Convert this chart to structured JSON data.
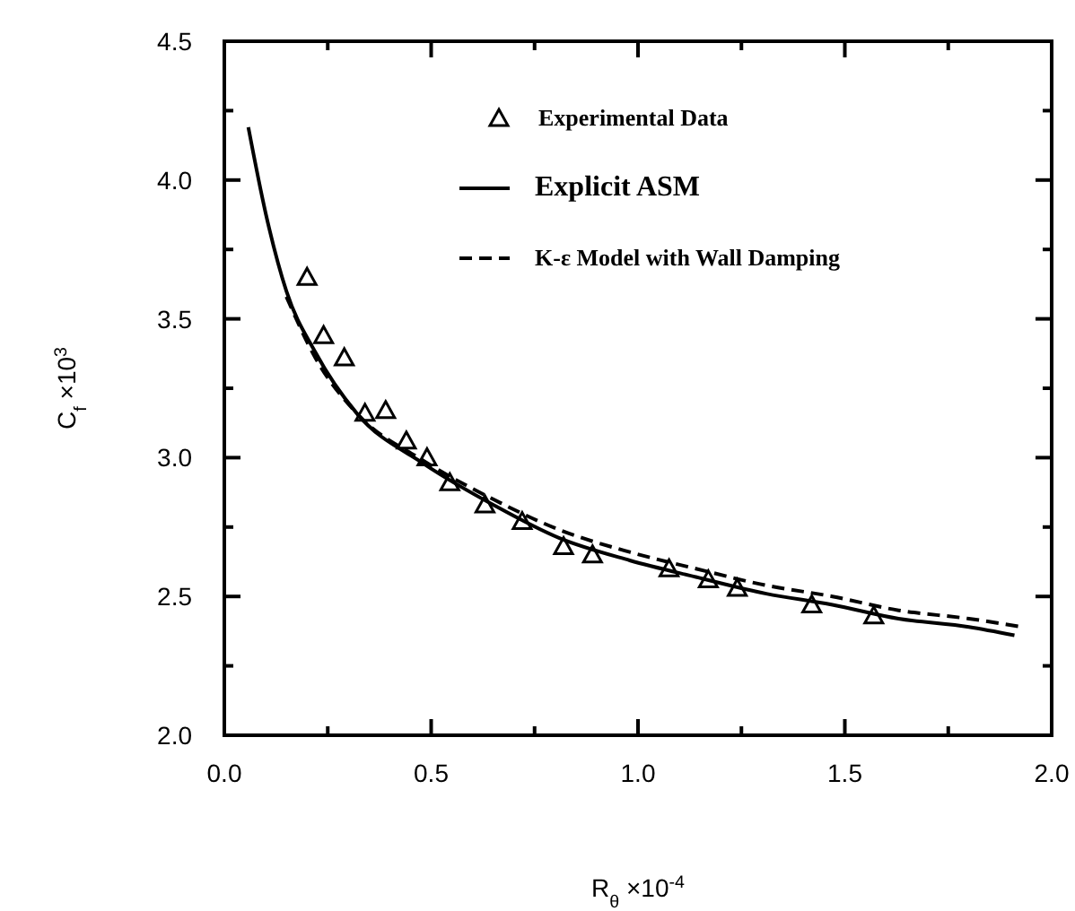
{
  "chart_data": {
    "type": "line",
    "xlabel": "R$_{θ}$  ×10$^{-4}$",
    "ylabel": "C$_{f}$  ×10$^{3}$",
    "xlim": [
      0,
      2
    ],
    "ylim": [
      2,
      4.5
    ],
    "xticks": [
      {
        "value": 0,
        "label": "0.0"
      },
      {
        "value": 0.25,
        "label": null
      },
      {
        "value": 0.5,
        "label": "0.5"
      },
      {
        "value": 0.75,
        "label": null
      },
      {
        "value": 1,
        "label": "1.0"
      },
      {
        "value": 1.25,
        "label": null
      },
      {
        "value": 1.5,
        "label": "1.5"
      },
      {
        "value": 1.75,
        "label": null
      },
      {
        "value": 2,
        "label": "2.0"
      }
    ],
    "yticks": [
      {
        "value": 2,
        "label": "2.0"
      },
      {
        "value": 2.25,
        "label": null
      },
      {
        "value": 2.5,
        "label": "2.5"
      },
      {
        "value": 2.75,
        "label": null
      },
      {
        "value": 3,
        "label": "3.0"
      },
      {
        "value": 3.25,
        "label": null
      },
      {
        "value": 3.5,
        "label": "3.5"
      },
      {
        "value": 3.75,
        "label": null
      },
      {
        "value": 4,
        "label": "4.0"
      },
      {
        "value": 4.25,
        "label": null
      },
      {
        "value": 4.5,
        "label": "4.5"
      }
    ],
    "legend": "top right",
    "grid": false,
    "series": [
      {
        "name": "Experimental Data",
        "type": "scatter",
        "marker": "triangle",
        "color": "#000000",
        "x": [
          0.2,
          0.24,
          0.29,
          0.34,
          0.39,
          0.44,
          0.49,
          0.545,
          0.63,
          0.72,
          0.82,
          0.89,
          1.075,
          1.17,
          1.24,
          1.42,
          1.57
        ],
        "values": [
          3.65,
          3.44,
          3.36,
          3.16,
          3.17,
          3.06,
          3.0,
          2.91,
          2.83,
          2.77,
          2.68,
          2.65,
          2.6,
          2.56,
          2.53,
          2.47,
          2.43
        ]
      },
      {
        "name": "Explicit ASM",
        "type": "line",
        "line_style": "solid",
        "color": "#000000",
        "x": [
          0.058,
          0.1,
          0.15,
          0.22,
          0.32,
          0.48,
          0.65,
          0.81,
          0.98,
          1.14,
          1.31,
          1.47,
          1.63,
          1.8,
          1.91
        ],
        "values": [
          4.19,
          3.88,
          3.6,
          3.38,
          3.16,
          2.98,
          2.83,
          2.71,
          2.63,
          2.57,
          2.51,
          2.47,
          2.42,
          2.39,
          2.36
        ]
      },
      {
        "name": "K-ε Model with Wall Damping",
        "type": "line",
        "line_style": "dashed",
        "color": "#000000",
        "x": [
          0.15,
          0.22,
          0.32,
          0.48,
          0.65,
          0.81,
          0.98,
          1.14,
          1.31,
          1.47,
          1.63,
          1.8,
          1.93
        ],
        "values": [
          3.58,
          3.36,
          3.16,
          2.99,
          2.85,
          2.74,
          2.66,
          2.6,
          2.54,
          2.5,
          2.45,
          2.42,
          2.39
        ]
      }
    ]
  }
}
